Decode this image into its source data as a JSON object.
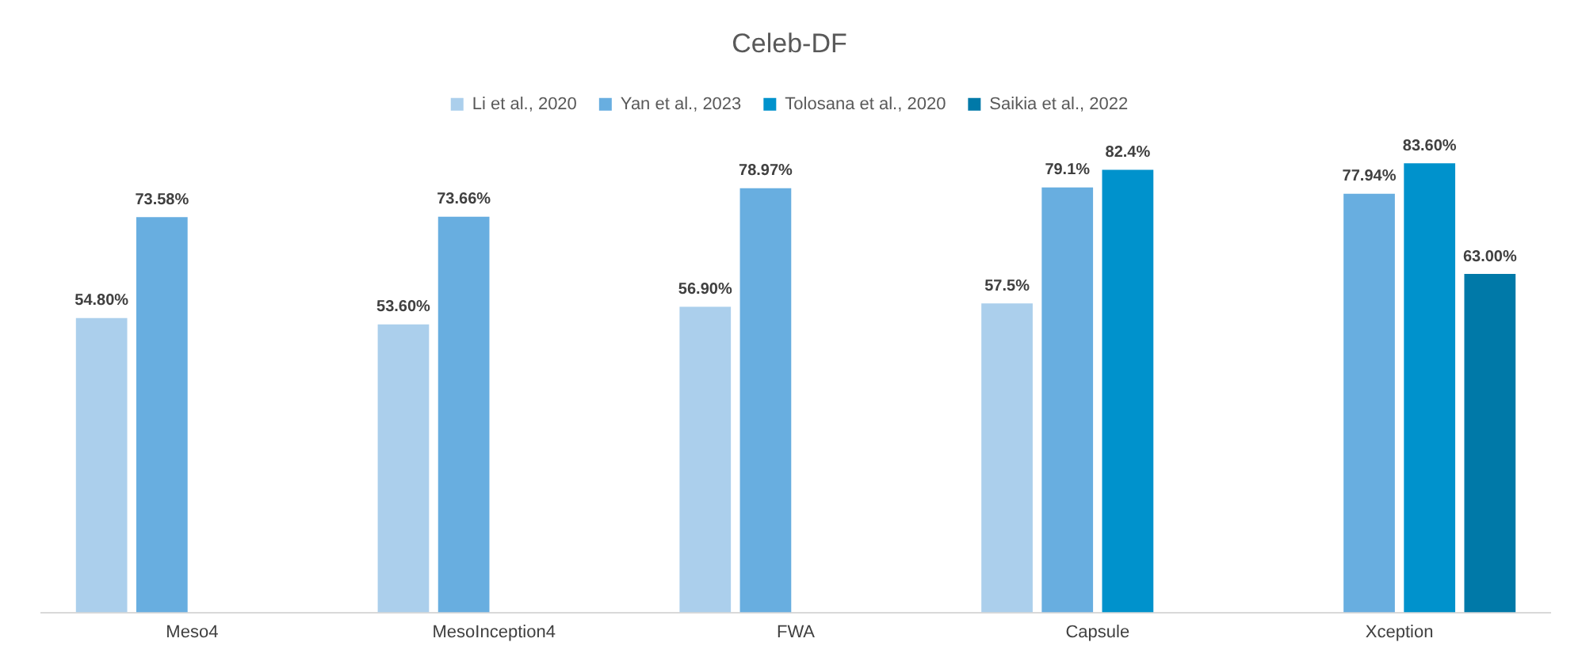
{
  "chart_data": {
    "type": "bar",
    "title": "Celeb-DF",
    "categories": [
      "Meso4",
      "MesoInception4",
      "FWA",
      "Capsule",
      "Xception"
    ],
    "series": [
      {
        "name": "Li et al., 2020",
        "color": "#abcfec",
        "values": [
          54.8,
          53.6,
          56.9,
          57.5,
          null
        ],
        "value_labels": [
          "54.80%",
          "53.60%",
          "56.90%",
          "57.5%",
          null
        ]
      },
      {
        "name": "Yan et al., 2023",
        "color": "#68aee0",
        "values": [
          73.58,
          73.66,
          78.97,
          79.1,
          77.94
        ],
        "value_labels": [
          "73.58%",
          "73.66%",
          "78.97%",
          "79.1%",
          "77.94%"
        ]
      },
      {
        "name": "Tolosana et al., 2020",
        "color": "#0092cc",
        "values": [
          null,
          null,
          null,
          82.4,
          83.6
        ],
        "value_labels": [
          null,
          null,
          null,
          "82.4%",
          "83.60%"
        ]
      },
      {
        "name": "Saikia et al., 2022",
        "color": "#0079a8",
        "values": [
          null,
          null,
          null,
          null,
          63.0
        ],
        "value_labels": [
          null,
          null,
          null,
          null,
          "63.00%"
        ]
      }
    ],
    "tick_labels": "x",
    "grid": false,
    "legend": "top"
  }
}
